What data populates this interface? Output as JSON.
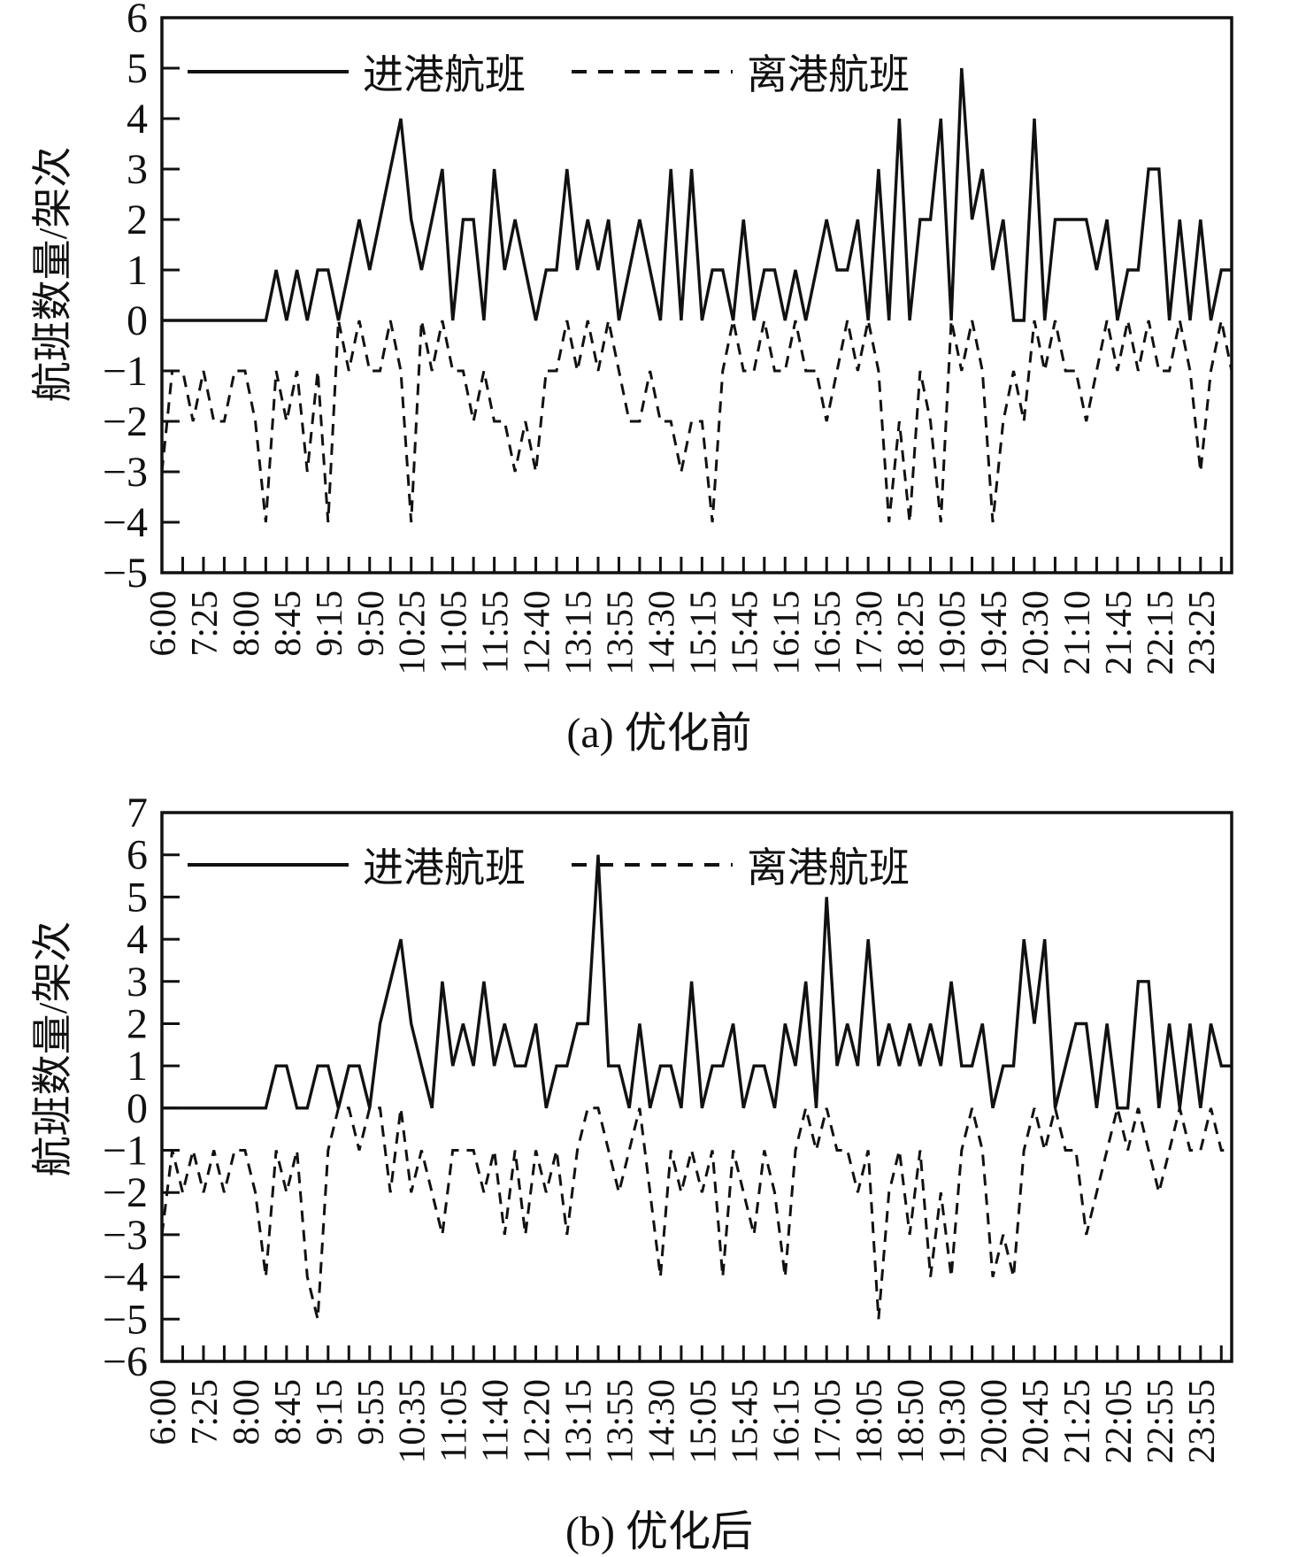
{
  "page": {
    "background": "#ffffff",
    "line_color": "#111111"
  },
  "chart_data": [
    {
      "type": "line",
      "caption": "(a) 优化前",
      "ylabel": "航班数量/架次",
      "ylim": [
        -5,
        6
      ],
      "grid": false,
      "legend_position": "top-inside",
      "legend": [
        {
          "name": "进港航班",
          "style": "solid"
        },
        {
          "name": "离港航班",
          "style": "dashed"
        }
      ],
      "x_tick_label_every": 4,
      "x_tick_labels": [
        "6:00",
        "7:25",
        "8:00",
        "8:45",
        "9:15",
        "9:50",
        "10:25",
        "11:05",
        "11:55",
        "12:40",
        "13:15",
        "13:55",
        "14:30",
        "15:15",
        "15:45",
        "16:15",
        "16:55",
        "17:30",
        "18:25",
        "19:05",
        "19:45",
        "20:30",
        "21:10",
        "21:45",
        "22:15",
        "23:25"
      ],
      "series": [
        {
          "name": "进港航班",
          "style": "solid",
          "values": [
            0,
            0,
            0,
            0,
            0,
            0,
            0,
            0,
            0,
            0,
            0,
            1,
            0,
            1,
            0,
            1,
            1,
            0,
            1,
            2,
            1,
            2,
            3,
            4,
            2,
            1,
            2,
            3,
            0,
            2,
            2,
            0,
            3,
            1,
            2,
            1,
            0,
            1,
            1,
            3,
            1,
            2,
            1,
            2,
            0,
            1,
            2,
            1,
            0,
            3,
            0,
            3,
            0,
            1,
            1,
            0,
            2,
            0,
            1,
            1,
            0,
            1,
            0,
            1,
            2,
            1,
            1,
            2,
            0,
            3,
            0,
            4,
            0,
            2,
            2,
            4,
            0,
            5,
            2,
            3,
            1,
            2,
            0,
            0,
            4,
            0,
            2,
            2,
            2,
            2,
            1,
            2,
            0,
            1,
            1,
            3,
            3,
            0,
            2,
            0,
            2,
            0,
            1,
            1
          ]
        },
        {
          "name": "离港航班",
          "style": "dashed",
          "values": [
            -3,
            -1,
            -1,
            -2,
            -1,
            -2,
            -2,
            -1,
            -1,
            -2,
            -4,
            -1,
            -2,
            -1,
            -3,
            -1,
            -4,
            0,
            -1,
            0,
            -1,
            -1,
            0,
            -1,
            -4,
            0,
            -1,
            0,
            -1,
            -1,
            -2,
            -1,
            -2,
            -2,
            -3,
            -2,
            -3,
            -1,
            -1,
            0,
            -1,
            0,
            -1,
            0,
            -1,
            -2,
            -2,
            -1,
            -2,
            -2,
            -3,
            -2,
            -2,
            -4,
            -1,
            0,
            -1,
            -1,
            0,
            -1,
            -1,
            0,
            -1,
            -1,
            -2,
            -1,
            0,
            -1,
            0,
            -1,
            -4,
            -2,
            -4,
            -1,
            -2,
            -4,
            0,
            -1,
            0,
            -1,
            -4,
            -2,
            -1,
            -2,
            0,
            -1,
            0,
            -1,
            -1,
            -2,
            -1,
            0,
            -1,
            0,
            -1,
            0,
            -1,
            -1,
            0,
            -1,
            -3,
            -1,
            0,
            -1
          ]
        }
      ]
    },
    {
      "type": "line",
      "caption": "(b) 优化后",
      "ylabel": "航班数量/架次",
      "ylim": [
        -6,
        7
      ],
      "grid": false,
      "legend_position": "top-inside",
      "legend": [
        {
          "name": "进港航班",
          "style": "solid"
        },
        {
          "name": "离港航班",
          "style": "dashed"
        }
      ],
      "x_tick_label_every": 4,
      "x_tick_labels": [
        "6:00",
        "7:25",
        "8:00",
        "8:45",
        "9:15",
        "9:55",
        "10:35",
        "11:05",
        "11:40",
        "12:20",
        "13:15",
        "13:55",
        "14:30",
        "15:05",
        "15:45",
        "16:15",
        "17:05",
        "18:05",
        "18:50",
        "19:30",
        "20:00",
        "20:45",
        "21:25",
        "22:05",
        "22:55",
        "23:55"
      ],
      "series": [
        {
          "name": "进港航班",
          "style": "solid",
          "values": [
            0,
            0,
            0,
            0,
            0,
            0,
            0,
            0,
            0,
            0,
            0,
            1,
            1,
            0,
            0,
            1,
            1,
            0,
            1,
            1,
            0,
            2,
            3,
            4,
            2,
            1,
            0,
            3,
            1,
            2,
            1,
            3,
            1,
            2,
            1,
            1,
            2,
            0,
            1,
            1,
            2,
            2,
            6,
            1,
            1,
            0,
            2,
            0,
            1,
            1,
            0,
            3,
            0,
            1,
            1,
            2,
            0,
            1,
            1,
            0,
            2,
            1,
            3,
            0,
            5,
            1,
            2,
            1,
            4,
            1,
            2,
            1,
            2,
            1,
            2,
            1,
            3,
            1,
            1,
            2,
            0,
            1,
            1,
            4,
            2,
            4,
            0,
            1,
            2,
            2,
            0,
            2,
            0,
            0,
            3,
            3,
            0,
            2,
            0,
            2,
            0,
            2,
            1,
            1
          ]
        },
        {
          "name": "离港航班",
          "style": "dashed",
          "values": [
            -3,
            -1,
            -2,
            -1,
            -2,
            -1,
            -2,
            -1,
            -1,
            -2,
            -4,
            -1,
            -2,
            -1,
            -4,
            -5,
            -1,
            0,
            0,
            -1,
            0,
            0,
            -2,
            0,
            -2,
            -1,
            -2,
            -3,
            -1,
            -1,
            -1,
            -2,
            -1,
            -3,
            -1,
            -3,
            -1,
            -2,
            -1,
            -3,
            -1,
            0,
            0,
            -1,
            -2,
            -1,
            0,
            -2,
            -4,
            -1,
            -2,
            -1,
            -2,
            -1,
            -4,
            -1,
            -2,
            -3,
            -1,
            -2,
            -4,
            -1,
            0,
            -1,
            0,
            -1,
            -1,
            -2,
            -1,
            -5,
            -2,
            -1,
            -3,
            -1,
            -4,
            -2,
            -4,
            -1,
            0,
            -1,
            -4,
            -3,
            -4,
            -1,
            0,
            -1,
            0,
            -1,
            -1,
            -3,
            -2,
            -1,
            0,
            -1,
            0,
            -1,
            -2,
            -1,
            0,
            -1,
            -1,
            0,
            -1,
            -1
          ]
        }
      ]
    }
  ]
}
